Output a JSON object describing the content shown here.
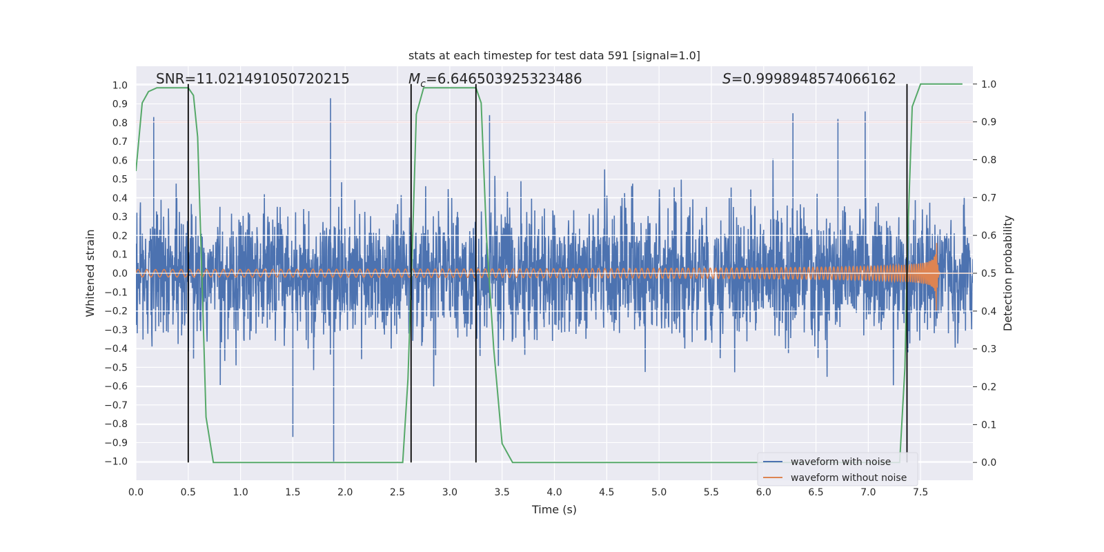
{
  "chart_data": {
    "type": "line",
    "title": "stats at each timestep for test data 591 [signal=1.0]",
    "xlabel": "Time (s)",
    "ylabel": "Whitened strain",
    "y2label": "Detection probability",
    "xlim": [
      0.0,
      8.0
    ],
    "ylim": [
      -1.1,
      1.1
    ],
    "y2lim": [
      -0.047,
      1.047
    ],
    "xticks": [
      "0.0",
      "0.5",
      "1.0",
      "1.5",
      "2.0",
      "2.5",
      "3.0",
      "3.5",
      "4.0",
      "4.5",
      "5.0",
      "5.5",
      "6.0",
      "6.5",
      "7.0",
      "7.5"
    ],
    "yticks": [
      "1.0",
      "0.9",
      "0.8",
      "0.7",
      "0.6",
      "0.5",
      "0.4",
      "0.3",
      "0.2",
      "0.1",
      "0.0",
      "-0.1",
      "-0.2",
      "-0.3",
      "-0.4",
      "-0.5",
      "-0.6",
      "-0.7",
      "-0.8",
      "-0.9",
      "-1.0"
    ],
    "y2ticks": [
      "1.0",
      "0.9",
      "0.8",
      "0.7",
      "0.6",
      "0.5",
      "0.4",
      "0.3",
      "0.2",
      "0.1",
      "0.0"
    ],
    "grid": true,
    "legend_position": "bottom-right",
    "annotations": {
      "snr": "SNR=11.021491050720215",
      "mc_symbol": "M",
      "mc_sub": "c",
      "mc_value": "=6.646503925323486",
      "s_symbol": "S",
      "s_value": "=0.9998948574066162"
    },
    "threshold": {
      "axis": "y2",
      "value": 0.9,
      "color": "#c44e52"
    },
    "vlines": [
      0.5,
      2.63,
      3.25,
      7.37
    ],
    "series": [
      {
        "name": "waveform with noise",
        "color": "#4c72b0",
        "noise": {
          "envelope_abs": 0.35,
          "peak_max": 0.93,
          "peak_min": -1.0,
          "t_start": 0.0,
          "t_end": 8.0
        }
      },
      {
        "name": "waveform without noise",
        "color": "#dd8452",
        "chirp": {
          "amp_start": 0.02,
          "amp_peak": 0.26,
          "merger_time": 7.65,
          "end_time": 8.0
        }
      },
      {
        "name": "",
        "axis": "y2",
        "color": "#55a868",
        "x": [
          0.0,
          0.06,
          0.12,
          0.2,
          0.35,
          0.5,
          0.55,
          0.59,
          0.63,
          0.67,
          0.74,
          0.8,
          1.0,
          2.0,
          2.5,
          2.55,
          2.6,
          2.64,
          2.68,
          2.75,
          3.0,
          3.2,
          3.25,
          3.3,
          3.35,
          3.42,
          3.5,
          3.6,
          4.0,
          5.0,
          5.5,
          6.5,
          7.0,
          7.3,
          7.35,
          7.38,
          7.42,
          7.5,
          7.9
        ],
        "y": [
          0.77,
          0.95,
          0.98,
          0.99,
          0.99,
          0.99,
          0.97,
          0.86,
          0.5,
          0.12,
          0.0,
          0.0,
          0.0,
          0.0,
          0.0,
          0.0,
          0.22,
          0.55,
          0.92,
          0.99,
          0.99,
          0.99,
          0.99,
          0.95,
          0.6,
          0.3,
          0.05,
          0.0,
          0.0,
          0.0,
          0.0,
          0.0,
          0.0,
          0.0,
          0.25,
          0.62,
          0.94,
          1.0,
          1.0
        ]
      }
    ],
    "colors": {
      "axes_bg": "#eaeaf2",
      "grid": "#ffffff",
      "vline": "#000000"
    }
  }
}
